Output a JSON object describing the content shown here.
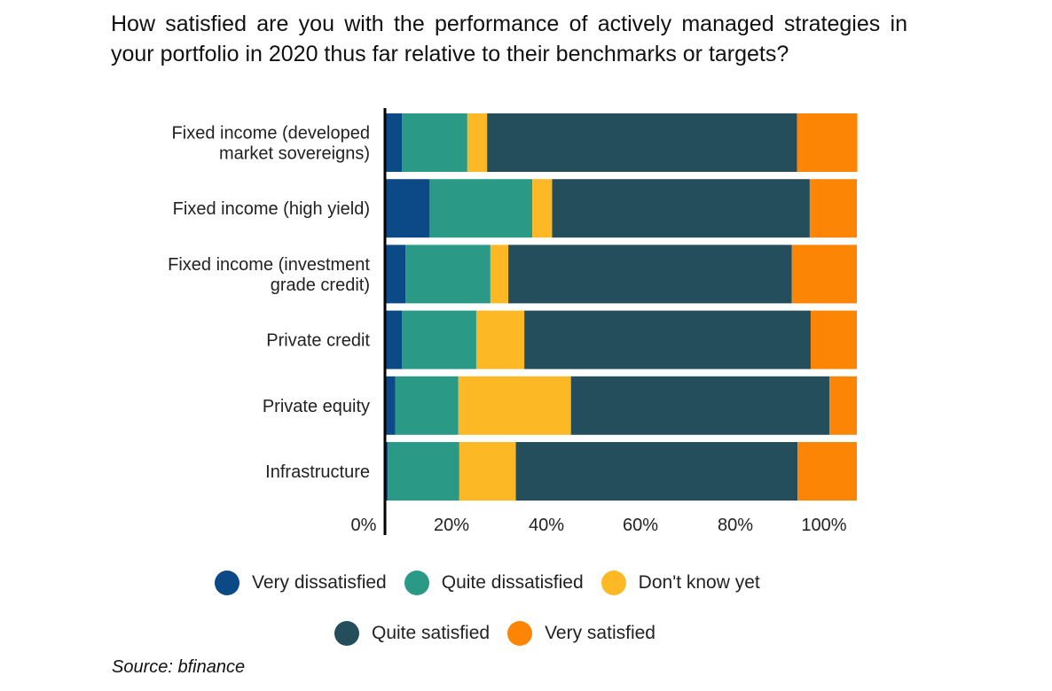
{
  "title": "How satisfied are you with the performance of actively managed strategies in your portfolio in 2020 thus far relative to their benchmarks or targets?",
  "source": "Source: bfinance",
  "colors": {
    "very_dissatisfied": "#0b4a86",
    "quite_dissatisfied": "#2a9a87",
    "dont_know": "#fdb825",
    "quite_satisfied": "#254e5c",
    "very_satisfied": "#fd8505"
  },
  "chart_data": {
    "type": "bar",
    "orientation": "horizontal",
    "stacked": true,
    "categories": [
      [
        "Fixed income (developed",
        "market sovereigns)"
      ],
      [
        "Fixed income (high yield)"
      ],
      [
        "Fixed income (investment",
        "grade credit)"
      ],
      [
        "Private credit"
      ],
      [
        "Private equity"
      ],
      [
        "Infrastructure"
      ]
    ],
    "series": [
      {
        "name": "Very dissatisfied",
        "color": "#0b4a86",
        "values": [
          3.4,
          9.3,
          4.2,
          3.4,
          2.0,
          0.4
        ]
      },
      {
        "name": "Quite dissatisfied",
        "color": "#2a9a87",
        "values": [
          13.9,
          21.8,
          18.0,
          15.8,
          13.4,
          15.2
        ]
      },
      {
        "name": "Don't know yet",
        "color": "#fdb825",
        "values": [
          4.2,
          4.2,
          3.8,
          10.2,
          23.9,
          12.0
        ]
      },
      {
        "name": "Quite satisfied",
        "color": "#254e5c",
        "values": [
          65.8,
          54.7,
          60.2,
          60.8,
          54.9,
          59.8
        ]
      },
      {
        "name": "Very satisfied",
        "color": "#fd8505",
        "values": [
          12.8,
          10.0,
          13.8,
          9.8,
          5.8,
          12.6
        ]
      }
    ],
    "xticks": [
      "0%",
      "20%",
      "40%",
      "60%",
      "80%",
      "100%"
    ],
    "xlim": [
      0,
      100
    ],
    "legend_position": "bottom",
    "grid": false
  },
  "legend_rows": [
    [
      "Very dissatisfied",
      "Quite dissatisfied",
      "Don't know yet"
    ],
    [
      "Quite satisfied",
      "Very satisfied"
    ]
  ]
}
